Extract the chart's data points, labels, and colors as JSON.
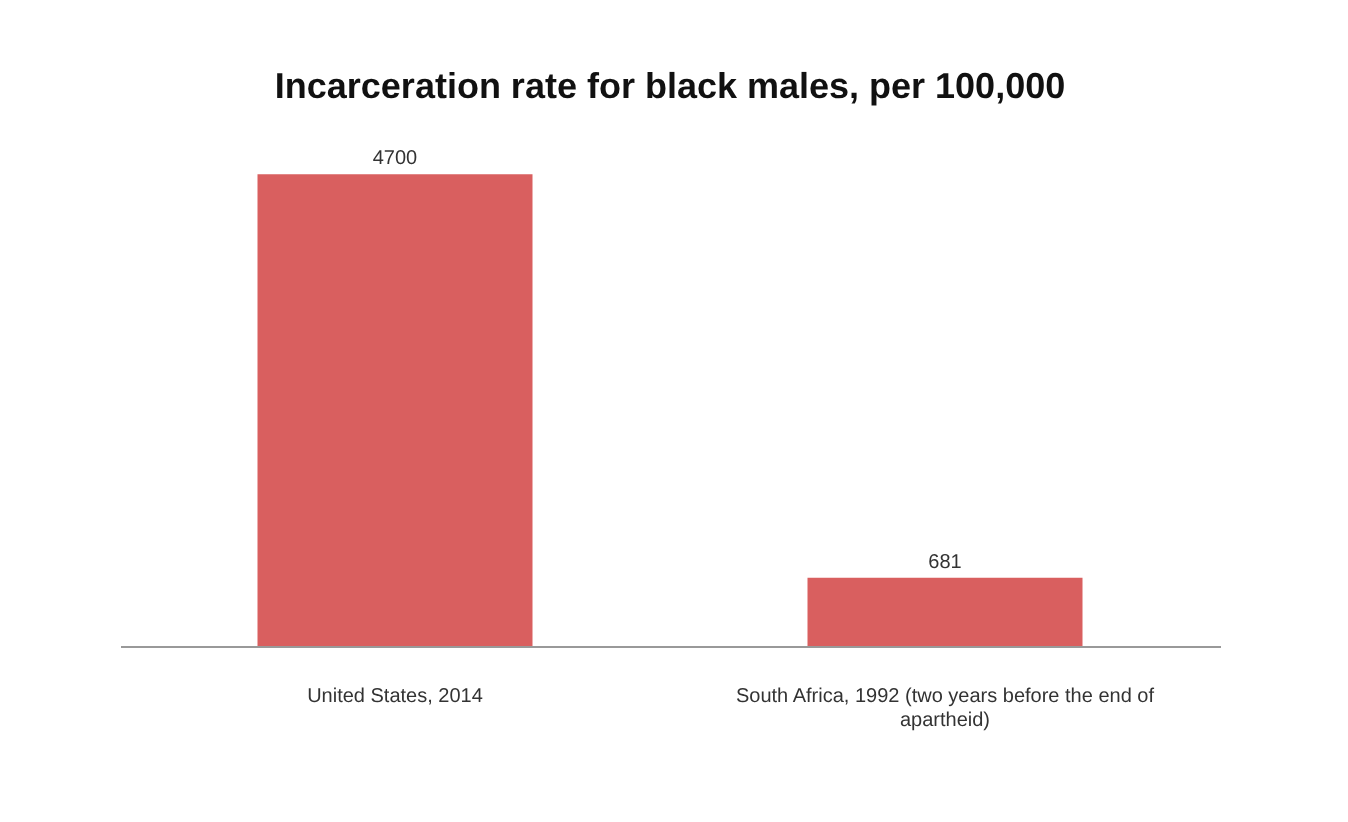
{
  "chart_data": {
    "type": "bar",
    "title": "Incarceration rate for black males, per 100,000",
    "categories": [
      "United States, 2014",
      "South Africa, 1992 (two years before the end of apartheid)"
    ],
    "values": [
      4700,
      681
    ],
    "color": "#d95f5f",
    "data_labels": true
  }
}
